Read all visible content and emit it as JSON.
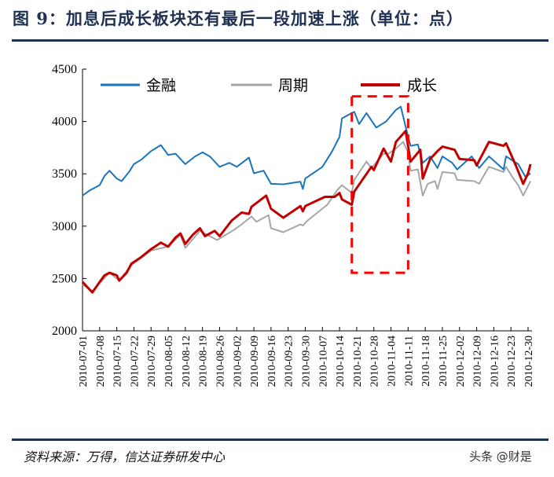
{
  "title": "图 9：加息后成长板块还有最后一段加速上涨（单位：点）",
  "source": "资料来源：万得，信达证券研发中心",
  "watermark": "头条 @财是",
  "chart_data": {
    "type": "line",
    "title": "",
    "xlabel": "",
    "ylabel": "",
    "ylim": [
      2000,
      4500
    ],
    "yticks": [
      "2000",
      "2500",
      "3000",
      "3500",
      "4000",
      "4500"
    ],
    "xlim": [
      "2010-07-01",
      "2010-12-30"
    ],
    "xticks": [
      "2010-07-01",
      "2010-07-08",
      "2010-07-15",
      "2010-07-22",
      "2010-07-29",
      "2010-08-05",
      "2010-08-12",
      "2010-08-19",
      "2010-08-26",
      "2010-09-02",
      "2010-09-09",
      "2010-09-16",
      "2010-09-23",
      "2010-09-30",
      "2010-10-07",
      "2010-10-14",
      "2010-10-21",
      "2010-10-28",
      "2010-11-04",
      "2010-11-11",
      "2010-11-18",
      "2010-11-25",
      "2010-12-02",
      "2010-12-09",
      "2010-12-16",
      "2010-12-23",
      "2010-12-30"
    ],
    "grid": false,
    "legend_position": "top",
    "series": [
      {
        "name": "金融",
        "color": "#1a75bb",
        "points": [
          [
            "2010-07-01",
            3292
          ],
          [
            "2010-07-04",
            3342
          ],
          [
            "2010-07-08",
            3392
          ],
          [
            "2010-07-10",
            3480
          ],
          [
            "2010-07-12",
            3530
          ],
          [
            "2010-07-15",
            3455
          ],
          [
            "2010-07-17",
            3430
          ],
          [
            "2010-07-20",
            3518
          ],
          [
            "2010-07-22",
            3592
          ],
          [
            "2010-07-25",
            3635
          ],
          [
            "2010-07-29",
            3717
          ],
          [
            "2010-08-02",
            3775
          ],
          [
            "2010-08-05",
            3680
          ],
          [
            "2010-08-08",
            3692
          ],
          [
            "2010-08-12",
            3592
          ],
          [
            "2010-08-16",
            3667
          ],
          [
            "2010-08-19",
            3705
          ],
          [
            "2010-08-22",
            3667
          ],
          [
            "2010-08-26",
            3567
          ],
          [
            "2010-08-30",
            3605
          ],
          [
            "2010-09-02",
            3567
          ],
          [
            "2010-09-07",
            3655
          ],
          [
            "2010-09-09",
            3505
          ],
          [
            "2010-09-13",
            3530
          ],
          [
            "2010-09-16",
            3405
          ],
          [
            "2010-09-21",
            3400
          ],
          [
            "2010-09-28",
            3425
          ],
          [
            "2010-09-29",
            3355
          ],
          [
            "2010-09-30",
            3455
          ],
          [
            "2010-10-07",
            3567
          ],
          [
            "2010-10-11",
            3717
          ],
          [
            "2010-10-14",
            3855
          ],
          [
            "2010-10-15",
            4030
          ],
          [
            "2010-10-20",
            4092
          ],
          [
            "2010-10-22",
            3975
          ],
          [
            "2010-10-25",
            4080
          ],
          [
            "2010-10-29",
            3942
          ],
          [
            "2010-11-02",
            4000
          ],
          [
            "2010-11-06",
            4110
          ],
          [
            "2010-11-08",
            4142
          ],
          [
            "2010-11-11",
            3855
          ],
          [
            "2010-11-12",
            3767
          ],
          [
            "2010-11-15",
            3780
          ],
          [
            "2010-11-17",
            3605
          ],
          [
            "2010-11-20",
            3667
          ],
          [
            "2010-11-23",
            3555
          ],
          [
            "2010-11-25",
            3667
          ],
          [
            "2010-11-29",
            3605
          ],
          [
            "2010-12-01",
            3542
          ],
          [
            "2010-12-07",
            3667
          ],
          [
            "2010-12-10",
            3555
          ],
          [
            "2010-12-14",
            3667
          ],
          [
            "2010-12-20",
            3542
          ],
          [
            "2010-12-21",
            3667
          ],
          [
            "2010-12-26",
            3592
          ],
          [
            "2010-12-29",
            3467
          ],
          [
            "2010-12-31",
            3505
          ]
        ]
      },
      {
        "name": "周期",
        "color": "#a6a6a6",
        "points": [
          [
            "2010-07-01",
            2442
          ],
          [
            "2010-07-05",
            2380
          ],
          [
            "2010-07-08",
            2455
          ],
          [
            "2010-07-12",
            2555
          ],
          [
            "2010-07-16",
            2480
          ],
          [
            "2010-07-21",
            2630
          ],
          [
            "2010-07-29",
            2767
          ],
          [
            "2010-08-05",
            2805
          ],
          [
            "2010-08-10",
            2917
          ],
          [
            "2010-08-12",
            2792
          ],
          [
            "2010-08-18",
            2955
          ],
          [
            "2010-08-25",
            2867
          ],
          [
            "2010-09-01",
            2967
          ],
          [
            "2010-09-04",
            3017
          ],
          [
            "2010-09-08",
            3092
          ],
          [
            "2010-09-10",
            3042
          ],
          [
            "2010-09-15",
            3105
          ],
          [
            "2010-09-16",
            2980
          ],
          [
            "2010-09-21",
            2942
          ],
          [
            "2010-09-28",
            3017
          ],
          [
            "2010-09-29",
            3005
          ],
          [
            "2010-10-01",
            3055
          ],
          [
            "2010-10-09",
            3205
          ],
          [
            "2010-10-13",
            3342
          ],
          [
            "2010-10-15",
            3392
          ],
          [
            "2010-10-19",
            3317
          ],
          [
            "2010-10-20",
            3442
          ],
          [
            "2010-10-25",
            3617
          ],
          [
            "2010-10-27",
            3555
          ],
          [
            "2010-11-01",
            3692
          ],
          [
            "2010-11-03",
            3692
          ],
          [
            "2010-11-06",
            3742
          ],
          [
            "2010-11-09",
            3805
          ],
          [
            "2010-11-11",
            3705
          ],
          [
            "2010-11-12",
            3530
          ],
          [
            "2010-11-15",
            3542
          ],
          [
            "2010-11-17",
            3292
          ],
          [
            "2010-11-19",
            3405
          ],
          [
            "2010-11-22",
            3430
          ],
          [
            "2010-11-23",
            3355
          ],
          [
            "2010-11-25",
            3517
          ],
          [
            "2010-11-30",
            3505
          ],
          [
            "2010-12-01",
            3442
          ],
          [
            "2010-12-08",
            3430
          ],
          [
            "2010-12-10",
            3405
          ],
          [
            "2010-12-14",
            3567
          ],
          [
            "2010-12-20",
            3517
          ],
          [
            "2010-12-21",
            3567
          ],
          [
            "2010-12-24",
            3455
          ],
          [
            "2010-12-26",
            3392
          ],
          [
            "2010-12-28",
            3292
          ],
          [
            "2010-12-31",
            3430
          ]
        ]
      },
      {
        "name": "成长",
        "color": "#c00000",
        "points": [
          [
            "2010-07-01",
            2467
          ],
          [
            "2010-07-05",
            2367
          ],
          [
            "2010-07-08",
            2467
          ],
          [
            "2010-07-10",
            2530
          ],
          [
            "2010-07-12",
            2555
          ],
          [
            "2010-07-15",
            2530
          ],
          [
            "2010-07-16",
            2480
          ],
          [
            "2010-07-19",
            2555
          ],
          [
            "2010-07-21",
            2642
          ],
          [
            "2010-07-25",
            2705
          ],
          [
            "2010-07-29",
            2780
          ],
          [
            "2010-08-02",
            2842
          ],
          [
            "2010-08-05",
            2805
          ],
          [
            "2010-08-08",
            2892
          ],
          [
            "2010-08-10",
            2930
          ],
          [
            "2010-08-12",
            2830
          ],
          [
            "2010-08-15",
            2917
          ],
          [
            "2010-08-18",
            2980
          ],
          [
            "2010-08-20",
            2905
          ],
          [
            "2010-08-24",
            2955
          ],
          [
            "2010-08-26",
            2905
          ],
          [
            "2010-08-31",
            3055
          ],
          [
            "2010-09-04",
            3130
          ],
          [
            "2010-09-07",
            3117
          ],
          [
            "2010-09-08",
            3185
          ],
          [
            "2010-09-14",
            3292
          ],
          [
            "2010-09-16",
            3167
          ],
          [
            "2010-09-21",
            3080
          ],
          [
            "2010-09-28",
            3192
          ],
          [
            "2010-09-29",
            3142
          ],
          [
            "2010-09-30",
            3192
          ],
          [
            "2010-10-08",
            3280
          ],
          [
            "2010-10-12",
            3280
          ],
          [
            "2010-10-14",
            3317
          ],
          [
            "2010-10-15",
            3255
          ],
          [
            "2010-10-19",
            3205
          ],
          [
            "2010-10-20",
            3330
          ],
          [
            "2010-10-27",
            3567
          ],
          [
            "2010-10-28",
            3535
          ],
          [
            "2010-11-01",
            3742
          ],
          [
            "2010-11-04",
            3617
          ],
          [
            "2010-11-06",
            3805
          ],
          [
            "2010-11-10",
            3910
          ],
          [
            "2010-11-12",
            3617
          ],
          [
            "2010-11-16",
            3730
          ],
          [
            "2010-11-17",
            3455
          ],
          [
            "2010-11-20",
            3642
          ],
          [
            "2010-11-23",
            3717
          ],
          [
            "2010-11-25",
            3760
          ],
          [
            "2010-11-30",
            3730
          ],
          [
            "2010-12-02",
            3642
          ],
          [
            "2010-12-08",
            3630
          ],
          [
            "2010-12-09",
            3580
          ],
          [
            "2010-12-14",
            3805
          ],
          [
            "2010-12-20",
            3767
          ],
          [
            "2010-12-21",
            3792
          ],
          [
            "2010-12-25",
            3580
          ],
          [
            "2010-12-28",
            3405
          ],
          [
            "2010-12-30",
            3505
          ],
          [
            "2010-12-31",
            3592
          ]
        ]
      }
    ],
    "annotations": [
      {
        "type": "dashed-box",
        "color": "#ff0000",
        "x": [
          "2010-10-19",
          "2010-11-11"
        ],
        "y": [
          2555,
          4240
        ]
      }
    ]
  }
}
